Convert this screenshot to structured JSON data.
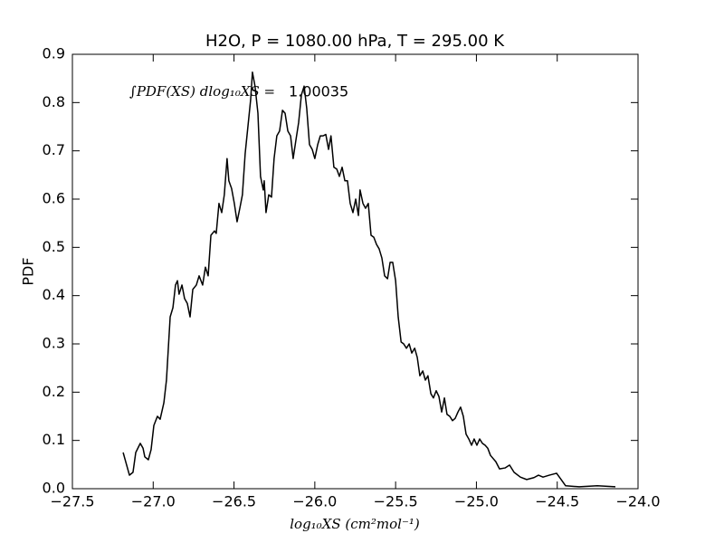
{
  "chart_data": {
    "type": "line",
    "title": "H2O, P = 1080.00 hPa, T = 295.00 K",
    "xlabel": "log₁₀XS (cm²mol⁻¹)",
    "ylabel": "PDF",
    "annotation": {
      "expression": "∫PDF(XS) dlog₁₀XS =",
      "value": 1.00035
    },
    "xlim": [
      -27.5,
      -24.0
    ],
    "ylim": [
      0,
      0.9
    ],
    "xticks": [
      {
        "value": -27.5,
        "label": "−27.5"
      },
      {
        "value": -27.0,
        "label": "−27.0"
      },
      {
        "value": -26.5,
        "label": "−26.5"
      },
      {
        "value": -26.0,
        "label": "−26.0"
      },
      {
        "value": -25.5,
        "label": "−25.5"
      },
      {
        "value": -25.0,
        "label": "−25.0"
      },
      {
        "value": -24.5,
        "label": "−24.5"
      },
      {
        "value": -24.0,
        "label": "−24.0"
      }
    ],
    "yticks": [
      {
        "value": 0,
        "label": "0.0"
      },
      0.1,
      0.2,
      0.3,
      0.4,
      0.5,
      0.6,
      0.7,
      0.8,
      0.9
    ],
    "grid": false,
    "x": [
      -27.186,
      -27.147,
      -27.125,
      -27.108,
      -27.08,
      -27.063,
      -27.052,
      -27.03,
      -27.013,
      -26.996,
      -26.974,
      -26.957,
      -26.934,
      -26.918,
      -26.895,
      -26.878,
      -26.862,
      -26.85,
      -26.84,
      -26.822,
      -26.806,
      -26.789,
      -26.772,
      -26.755,
      -26.733,
      -26.716,
      -26.694,
      -26.677,
      -26.66,
      -26.643,
      -26.621,
      -26.61,
      -26.593,
      -26.576,
      -26.56,
      -26.543,
      -26.532,
      -26.515,
      -26.498,
      -26.481,
      -26.464,
      -26.448,
      -26.431,
      -26.414,
      -26.397,
      -26.386,
      -26.37,
      -26.352,
      -26.336,
      -26.319,
      -26.313,
      -26.302,
      -26.285,
      -26.268,
      -26.252,
      -26.235,
      -26.218,
      -26.2,
      -26.184,
      -26.167,
      -26.15,
      -26.134,
      -26.117,
      -26.1,
      -26.083,
      -26.066,
      -26.05,
      -26.033,
      -26.016,
      -26.0,
      -25.982,
      -25.966,
      -25.949,
      -25.932,
      -25.915,
      -25.9,
      -25.882,
      -25.864,
      -25.848,
      -25.831,
      -25.814,
      -25.798,
      -25.781,
      -25.764,
      -25.747,
      -25.73,
      -25.72,
      -25.702,
      -25.686,
      -25.669,
      -25.652,
      -25.635,
      -25.618,
      -25.602,
      -25.585,
      -25.568,
      -25.55,
      -25.534,
      -25.518,
      -25.5,
      -25.484,
      -25.466,
      -25.45,
      -25.433,
      -25.416,
      -25.4,
      -25.382,
      -25.366,
      -25.35,
      -25.332,
      -25.316,
      -25.3,
      -25.282,
      -25.266,
      -25.249,
      -25.232,
      -25.215,
      -25.198,
      -25.182,
      -25.165,
      -25.148,
      -25.131,
      -25.114,
      -25.098,
      -25.081,
      -25.064,
      -25.047,
      -25.03,
      -25.014,
      -24.997,
      -24.98,
      -24.963,
      -24.946,
      -24.93,
      -24.913,
      -24.88,
      -24.857,
      -24.823,
      -24.795,
      -24.767,
      -24.728,
      -24.689,
      -24.644,
      -24.616,
      -24.588,
      -24.549,
      -24.504,
      -24.476,
      -24.448,
      -24.364,
      -24.252,
      -24.14
    ],
    "series": [
      {
        "color": "#000000",
        "values": [
          0.075,
          0.028,
          0.034,
          0.075,
          0.094,
          0.084,
          0.066,
          0.06,
          0.081,
          0.131,
          0.15,
          0.144,
          0.178,
          0.225,
          0.356,
          0.375,
          0.422,
          0.431,
          0.403,
          0.422,
          0.394,
          0.384,
          0.356,
          0.413,
          0.422,
          0.441,
          0.422,
          0.459,
          0.441,
          0.525,
          0.534,
          0.529,
          0.591,
          0.572,
          0.609,
          0.684,
          0.638,
          0.622,
          0.591,
          0.553,
          0.581,
          0.609,
          0.694,
          0.75,
          0.806,
          0.863,
          0.834,
          0.778,
          0.647,
          0.619,
          0.638,
          0.572,
          0.609,
          0.604,
          0.684,
          0.731,
          0.741,
          0.784,
          0.778,
          0.741,
          0.731,
          0.684,
          0.722,
          0.759,
          0.816,
          0.834,
          0.788,
          0.713,
          0.703,
          0.684,
          0.713,
          0.731,
          0.731,
          0.734,
          0.703,
          0.731,
          0.666,
          0.662,
          0.647,
          0.666,
          0.638,
          0.638,
          0.591,
          0.572,
          0.6,
          0.566,
          0.619,
          0.591,
          0.581,
          0.591,
          0.525,
          0.521,
          0.506,
          0.497,
          0.478,
          0.441,
          0.435,
          0.469,
          0.469,
          0.431,
          0.356,
          0.304,
          0.3,
          0.291,
          0.3,
          0.281,
          0.291,
          0.272,
          0.234,
          0.244,
          0.225,
          0.234,
          0.197,
          0.188,
          0.203,
          0.191,
          0.159,
          0.188,
          0.154,
          0.15,
          0.141,
          0.146,
          0.159,
          0.169,
          0.15,
          0.113,
          0.103,
          0.09,
          0.103,
          0.09,
          0.103,
          0.094,
          0.09,
          0.084,
          0.069,
          0.056,
          0.041,
          0.043,
          0.049,
          0.034,
          0.024,
          0.019,
          0.023,
          0.028,
          0.024,
          0.028,
          0.032,
          0.019,
          0.006,
          0.004,
          0.006,
          0.004
        ]
      }
    ]
  }
}
